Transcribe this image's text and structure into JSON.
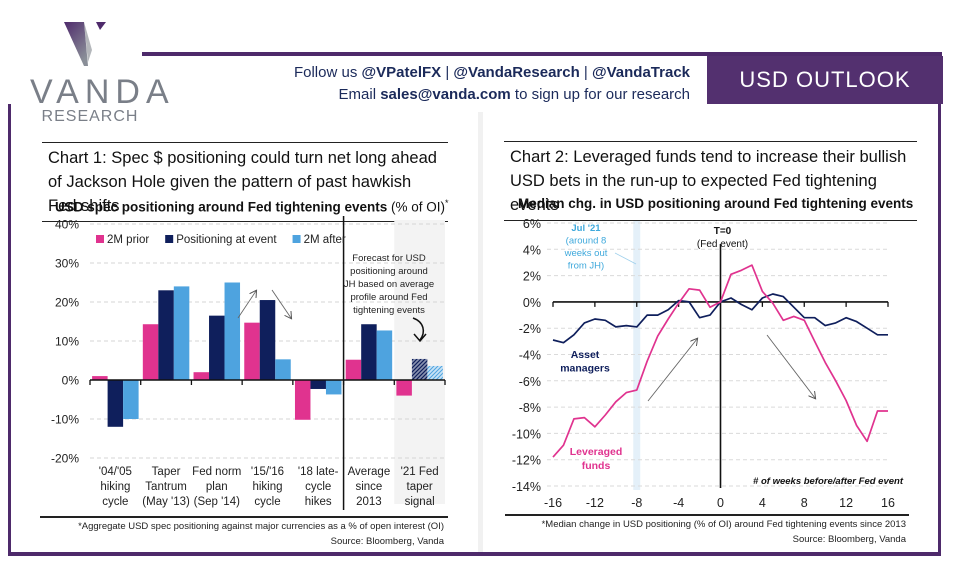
{
  "header": {
    "brand": "VANDA",
    "brand_sub": "RESEARCH",
    "follow_prefix": "Follow us ",
    "handles": [
      "@VPatelFX",
      "@VandaResearch",
      "@VandaTrack"
    ],
    "separator": " | ",
    "email_prefix": "Email ",
    "email": "sales@vanda.com",
    "email_suffix": " to sign up for our research",
    "section_label": "USD OUTLOOK"
  },
  "colors": {
    "brand_purple": "#53306f",
    "pink": "#e0338f",
    "navy": "#0f1f5c",
    "light_blue": "#4ea3df",
    "jul_label": "#3fa9dc"
  },
  "panel1": {
    "title": "Chart 1: Spec $ positioning could turn net long ahead of Jackson Hole given the pattern of past hawkish Fed shifts",
    "subtitle_bold": "USD spec positioning around Fed tightening events",
    "subtitle_normal": " (% of OI)",
    "subtitle_mark": "*",
    "footnote": "*Aggregate USD spec positioning against major currencies as a % of open interest (OI)",
    "source": "Source: Bloomberg, Vanda"
  },
  "panel2": {
    "title": "Chart 2: Leveraged funds tend to increase their bullish USD bets in the run-up to expected Fed tightening events",
    "subtitle": "Median chg. in USD positioning around Fed tightening events",
    "footnote": "*Median change in USD positioning (% of OI) around Fed tightening events since 2013",
    "source": "Source: Bloomberg, Vanda"
  },
  "chart_data": [
    {
      "type": "bar",
      "title": "USD spec positioning around Fed tightening events (% of OI)*",
      "categories": [
        [
          "'04/'05",
          "hiking",
          "cycle"
        ],
        [
          "Taper",
          "Tantrum",
          "(May '13)"
        ],
        [
          "Fed norm",
          "plan",
          "(Sep '14)"
        ],
        [
          "'15/'16",
          "hiking",
          "cycle"
        ],
        [
          "'18 late-",
          "cycle",
          "hikes"
        ],
        [
          "Average",
          "since",
          "2013"
        ],
        [
          "'21 Fed",
          "taper",
          "signal"
        ]
      ],
      "series": [
        {
          "name": "2M prior",
          "color": "#e0338f",
          "values": [
            1.0,
            14.3,
            2.0,
            14.7,
            -10.2,
            5.2,
            -4.0
          ]
        },
        {
          "name": "Positioning at event",
          "color": "#0f1f5c",
          "values": [
            -12.0,
            23.0,
            16.5,
            20.5,
            -2.3,
            14.3,
            5.4
          ]
        },
        {
          "name": "2M after",
          "color": "#4ea3df",
          "values": [
            -10.0,
            24.0,
            25.0,
            5.3,
            -3.7,
            12.7,
            3.6
          ]
        }
      ],
      "forecast_hatched": {
        "category_index": 6,
        "series": [
          "Positioning at event",
          "2M after"
        ]
      },
      "ylim": [
        -20,
        40
      ],
      "yticks": [
        "40%",
        "30%",
        "20%",
        "10%",
        "0%",
        "-10%",
        "-20%"
      ],
      "ytick_values": [
        40,
        30,
        20,
        10,
        0,
        -10,
        -20
      ],
      "grid": true,
      "legend": "top-left",
      "annotation": "Forecast for USD positioning around JH based on average profile around Fed tightening events"
    },
    {
      "type": "line",
      "title": "Median chg. in USD positioning around Fed tightening events",
      "x": [
        -16,
        -15,
        -14,
        -13,
        -12,
        -11,
        -10,
        -9,
        -8,
        -7,
        -6,
        -5,
        -4,
        -3,
        -2,
        -1,
        0,
        1,
        2,
        3,
        4,
        5,
        6,
        7,
        8,
        9,
        10,
        11,
        12,
        13,
        14,
        15,
        16
      ],
      "series": [
        {
          "name": "Asset managers",
          "color": "#0f1f5c",
          "values": [
            -2.9,
            -3.1,
            -2.5,
            -1.6,
            -1.3,
            -1.4,
            -1.9,
            -1.8,
            -1.9,
            -1.0,
            -1.0,
            -0.6,
            0.1,
            0.0,
            -1.2,
            -1.0,
            0.0,
            0.3,
            -0.2,
            -0.6,
            0.3,
            0.6,
            0.4,
            -0.4,
            -1.2,
            -1.2,
            -1.8,
            -1.6,
            -1.2,
            -1.5,
            -2.0,
            -2.5,
            -2.5
          ]
        },
        {
          "name": "Leveraged funds",
          "color": "#e0338f",
          "values": [
            -11.8,
            -10.9,
            -8.9,
            -8.8,
            -9.5,
            -8.6,
            -7.6,
            -6.9,
            -6.7,
            -4.5,
            -2.6,
            -1.3,
            -0.1,
            1.0,
            0.9,
            -0.4,
            0.0,
            2.1,
            2.4,
            2.8,
            0.8,
            -0.1,
            -1.4,
            -1.1,
            -1.4,
            -3.0,
            -4.6,
            -6.0,
            -7.5,
            -9.4,
            -10.6,
            -8.3,
            -8.3
          ]
        }
      ],
      "xlim": [
        -16,
        16
      ],
      "ylim": [
        -14,
        6
      ],
      "xticks": [
        "-16",
        "-12",
        "-8",
        "-4",
        "0",
        "4",
        "8",
        "12",
        "16"
      ],
      "xtick_values": [
        -16,
        -12,
        -8,
        -4,
        0,
        4,
        8,
        12,
        16
      ],
      "yticks": [
        "6%",
        "4%",
        "2%",
        "0%",
        "-2%",
        "-4%",
        "-6%",
        "-8%",
        "-10%",
        "-12%",
        "-14%"
      ],
      "ytick_values": [
        6,
        4,
        2,
        0,
        -2,
        -4,
        -6,
        -8,
        -10,
        -12,
        -14
      ],
      "xlabel": "# of weeks before/after Fed event",
      "grid": true,
      "highlight_band_x": -8,
      "annotations": {
        "t0": "T=0",
        "t0_sub": "(Fed event)",
        "jul_lines": [
          "Jul '21",
          "(around 8",
          "weeks out",
          "from JH)"
        ],
        "asset_lines": [
          "Asset",
          "managers"
        ],
        "lev_lines": [
          "Leveraged",
          "funds"
        ]
      }
    }
  ]
}
